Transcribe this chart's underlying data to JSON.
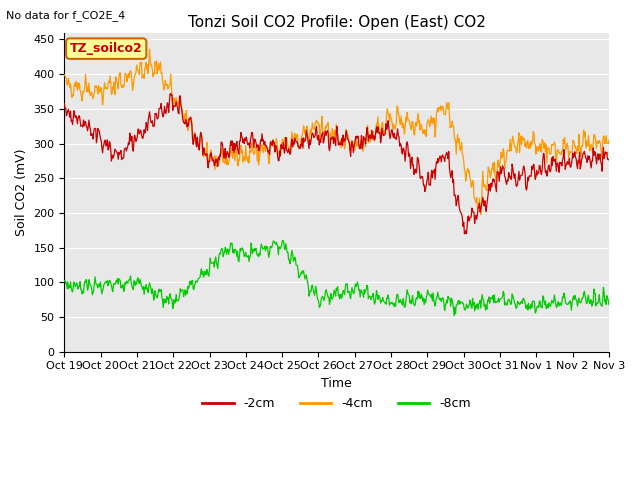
{
  "title": "Tonzi Soil CO2 Profile: Open (East) CO2",
  "subtitle": "No data for f_CO2E_4",
  "ylabel": "Soil CO2 (mV)",
  "xlabel": "Time",
  "legend_box_label": "TZ_soilco2",
  "ylim": [
    0,
    460
  ],
  "yticks": [
    0,
    50,
    100,
    150,
    200,
    250,
    300,
    350,
    400,
    450
  ],
  "xtick_labels": [
    "Oct 19",
    "Oct 20",
    "Oct 21",
    "Oct 22",
    "Oct 23",
    "Oct 24",
    "Oct 25",
    "Oct 26",
    "Oct 27",
    "Oct 28",
    "Oct 29",
    "Oct 30",
    "Oct 31",
    "Nov 1",
    "Nov 2",
    "Nov 3"
  ],
  "line_colors": {
    "neg2cm": "#cc0000",
    "neg4cm": "#ff9900",
    "neg8cm": "#00cc00"
  },
  "legend_entries": [
    "-2cm",
    "-4cm",
    "-8cm"
  ],
  "background_color": "#ffffff",
  "plot_bg_color": "#e8e8e8",
  "grid_color": "#ffffff",
  "title_fontsize": 11,
  "axis_fontsize": 9,
  "tick_fontsize": 8
}
